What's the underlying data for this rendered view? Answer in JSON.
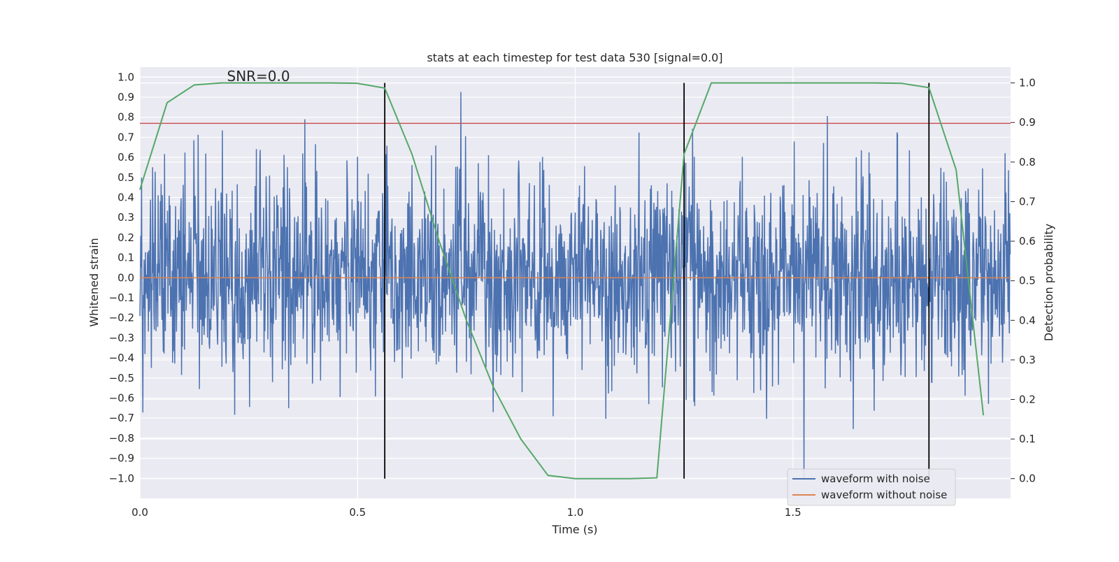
{
  "chart_data": {
    "type": "line",
    "title": "stats at each timestep for test data 530 [signal=0.0]",
    "xlabel": "Time (s)",
    "ylabel": "Whitened strain",
    "y2label": "Detection probability",
    "xlim": [
      0.0,
      2.0
    ],
    "ylim": [
      -1.1,
      1.05
    ],
    "y2lim": [
      -0.05,
      1.04
    ],
    "xticks": [
      "0.0",
      "0.5",
      "1.0",
      "1.5"
    ],
    "xtick_values": [
      0.0,
      0.5,
      1.0,
      1.5
    ],
    "yticks": [
      "1.0",
      "0.9",
      "0.8",
      "0.7",
      "0.6",
      "0.5",
      "0.4",
      "0.3",
      "0.2",
      "0.1",
      "0.0",
      "−0.1",
      "−0.2",
      "−0.3",
      "−0.4",
      "−0.5",
      "−0.6",
      "−0.7",
      "−0.8",
      "−0.9",
      "−1.0"
    ],
    "ytick_values": [
      1.0,
      0.9,
      0.8,
      0.7,
      0.6,
      0.5,
      0.4,
      0.3,
      0.2,
      0.1,
      0.0,
      -0.1,
      -0.2,
      -0.3,
      -0.4,
      -0.5,
      -0.6,
      -0.7,
      -0.8,
      -0.9,
      -1.0
    ],
    "y2ticks": [
      "1.0",
      "0.9",
      "0.8",
      "0.7",
      "0.6",
      "0.5",
      "0.4",
      "0.3",
      "0.2",
      "0.1",
      "0.0"
    ],
    "y2tick_values": [
      1.0,
      0.9,
      0.8,
      0.7,
      0.6,
      0.5,
      0.4,
      0.3,
      0.2,
      0.1,
      0.0
    ],
    "annotation": "SNR=0.0",
    "annotation_pos": [
      0.2,
      0.98
    ],
    "grid": true,
    "legend_position": "lower-right",
    "series": [
      {
        "name": "waveform with noise",
        "axis": "left",
        "color": "#4c72b0",
        "noise": {
          "samples": 2048,
          "seed": 530,
          "min": -1.0,
          "max": 0.96,
          "std": 0.25
        }
      },
      {
        "name": "waveform without noise",
        "axis": "left",
        "color": "#dd8452",
        "x": [
          0.0,
          2.0
        ],
        "values": [
          0.0,
          0.0
        ]
      },
      {
        "axis": "right",
        "color": "#55a868",
        "x": [
          0.0,
          0.0625,
          0.125,
          0.1875,
          0.25,
          0.3125,
          0.375,
          0.4375,
          0.5,
          0.5625,
          0.625,
          0.6875,
          0.75,
          0.8125,
          0.875,
          0.9375,
          1.0,
          1.0625,
          1.125,
          1.1875,
          1.25,
          1.3125,
          1.375,
          1.4375,
          1.5,
          1.5625,
          1.625,
          1.6875,
          1.75,
          1.8125,
          1.875,
          1.9375
        ],
        "values": [
          0.73,
          0.95,
          0.995,
          1.0,
          1.0,
          1.0,
          1.0,
          1.0,
          0.999,
          0.987,
          0.82,
          0.6,
          0.4,
          0.23,
          0.1,
          0.008,
          0.0,
          0.0,
          0.0,
          0.002,
          0.82,
          1.0,
          1.0,
          1.0,
          1.0,
          1.0,
          1.0,
          1.0,
          0.999,
          0.988,
          0.78,
          0.16
        ]
      }
    ],
    "hlines": [
      {
        "y": 0.77,
        "axis": "left",
        "color": "#c44e52"
      }
    ],
    "vlines": [
      {
        "x": 0.5625,
        "color": "#000000"
      },
      {
        "x": 1.25,
        "color": "#000000"
      },
      {
        "x": 1.8125,
        "color": "#000000"
      }
    ]
  }
}
